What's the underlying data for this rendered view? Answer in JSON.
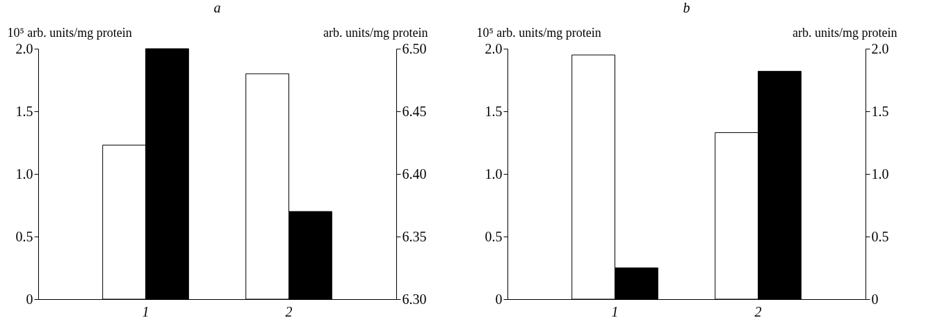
{
  "chart_data": [
    {
      "type": "bar",
      "title": "a",
      "ylabel": "10⁵ arb. units/mg protein",
      "y2label": "arb. units/mg protein",
      "categories": [
        "1",
        "2"
      ],
      "series": [
        {
          "color": "#ffffff",
          "values": [
            1.23,
            1.8
          ]
        },
        {
          "color": "#000000",
          "values": [
            6.5,
            6.37
          ],
          "axis": "y2"
        }
      ],
      "ylim": [
        0,
        2
      ],
      "yticks": [
        {
          "value": 0,
          "label": "0"
        },
        {
          "value": 0.5,
          "label": "0.5"
        },
        {
          "value": 1,
          "label": "1.0"
        },
        {
          "value": 1.5,
          "label": "1.5"
        },
        {
          "value": 2,
          "label": "2.0"
        }
      ],
      "y2lim": [
        6.3,
        6.5
      ],
      "y2ticks": [
        {
          "value": 6.3,
          "label": "6.30"
        },
        {
          "value": 6.35,
          "label": "6.35"
        },
        {
          "value": 6.4,
          "label": "6.40"
        },
        {
          "value": 6.45,
          "label": "6.45"
        },
        {
          "value": 6.5,
          "label": "6.50"
        }
      ]
    },
    {
      "type": "bar",
      "title": "b",
      "ylabel": "10⁵ arb. units/mg protein",
      "y2label": "arb. units/mg protein",
      "categories": [
        "1",
        "2"
      ],
      "series": [
        {
          "color": "#ffffff",
          "values": [
            1.95,
            1.33
          ]
        },
        {
          "color": "#000000",
          "values": [
            0.25,
            1.82
          ],
          "axis": "y2"
        }
      ],
      "ylim": [
        0,
        2
      ],
      "yticks": [
        {
          "value": 0,
          "label": "0"
        },
        {
          "value": 0.5,
          "label": "0.5"
        },
        {
          "value": 1,
          "label": "1.0"
        },
        {
          "value": 1.5,
          "label": "1.5"
        },
        {
          "value": 2,
          "label": "2.0"
        }
      ],
      "y2lim": [
        0,
        2
      ],
      "y2ticks": [
        {
          "value": 0,
          "label": "0"
        },
        {
          "value": 0.5,
          "label": "0.5"
        },
        {
          "value": 1,
          "label": "1.0"
        },
        {
          "value": 1.5,
          "label": "1.5"
        },
        {
          "value": 2,
          "label": "2.0"
        }
      ]
    }
  ]
}
